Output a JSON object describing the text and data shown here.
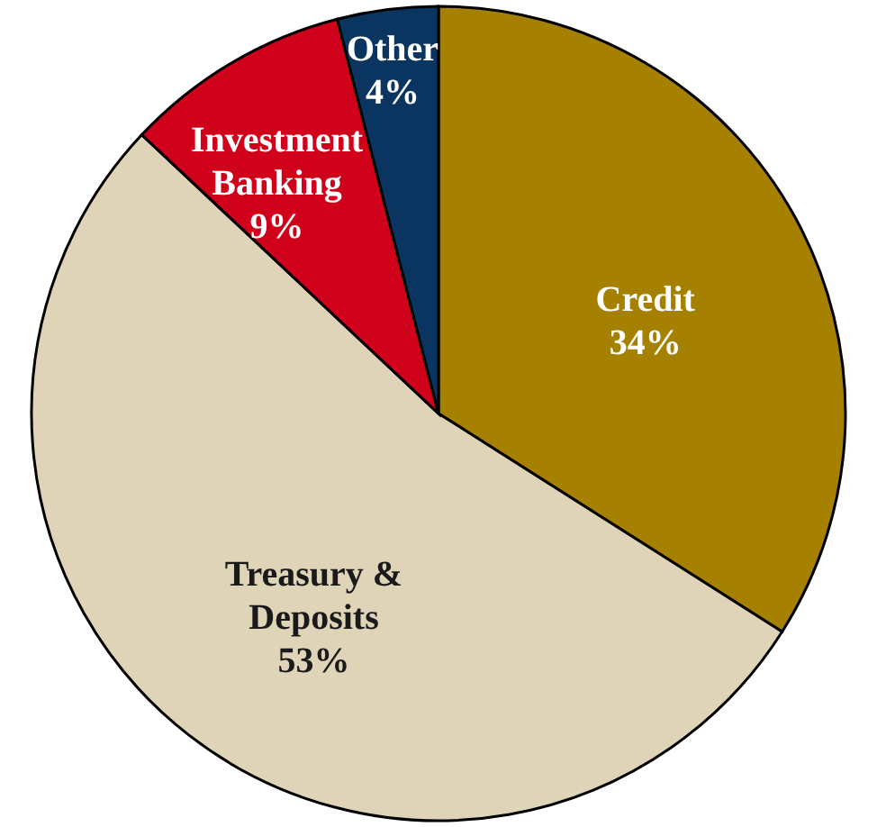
{
  "chart_data": {
    "type": "pie",
    "categories": [
      "Credit",
      "Treasury & Deposits",
      "Investment Banking",
      "Other"
    ],
    "values": [
      34,
      53,
      9,
      4
    ],
    "colors": [
      "#a68100",
      "#e0d4b8",
      "#d0021b",
      "#0a3560"
    ],
    "value_labels": [
      "34%",
      "53%",
      "9%",
      "4%"
    ]
  }
}
